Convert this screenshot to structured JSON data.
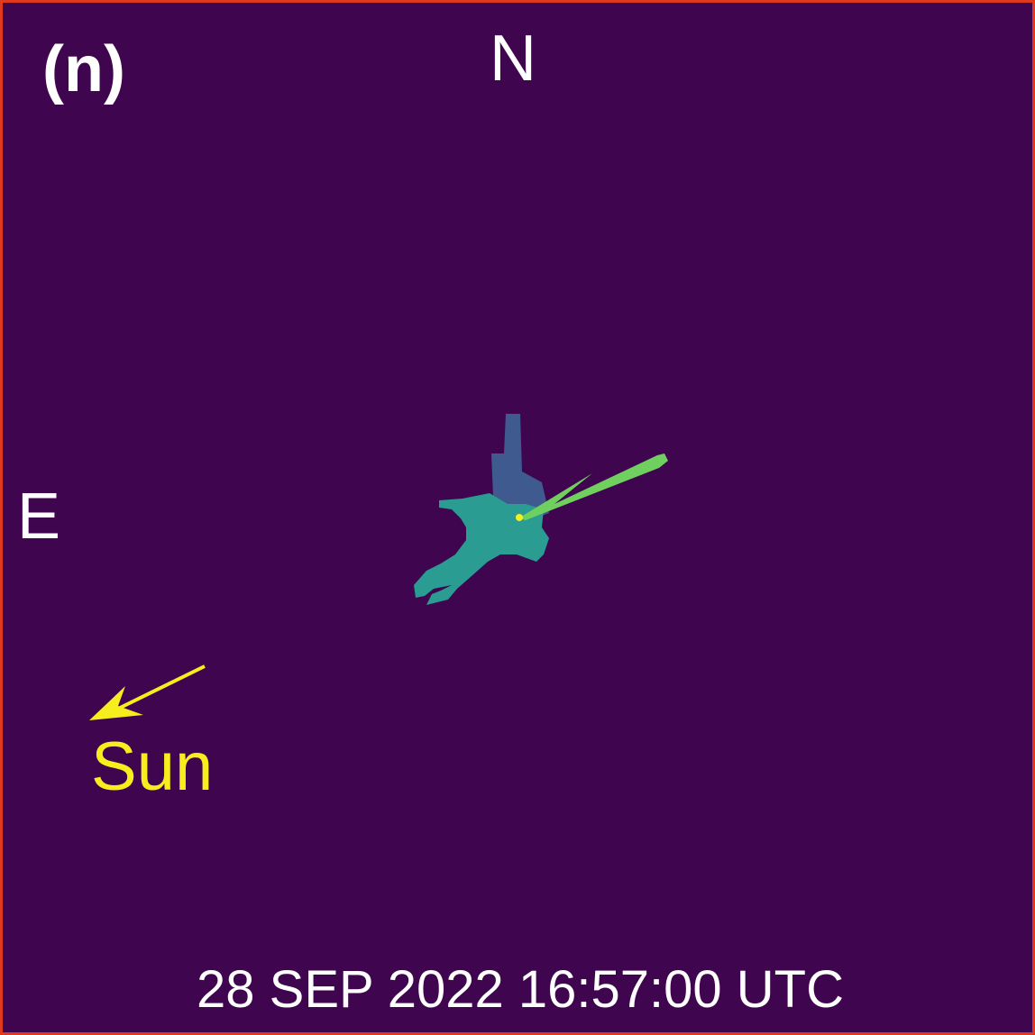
{
  "panel": {
    "label": "(n)"
  },
  "directions": {
    "north": "N",
    "east": "E"
  },
  "sun": {
    "label": "Sun",
    "color": "#f7ee1e"
  },
  "timestamp": "28 SEP 2022 16:57:00 UTC",
  "colors": {
    "background": "#40054f",
    "border": "#e03a1e",
    "shape_upper": "#3f5a8f",
    "shape_main": "#2a9c91",
    "beam": "#6fcf5f",
    "center_dot": "#f7ee1e",
    "text": "#ffffff"
  }
}
